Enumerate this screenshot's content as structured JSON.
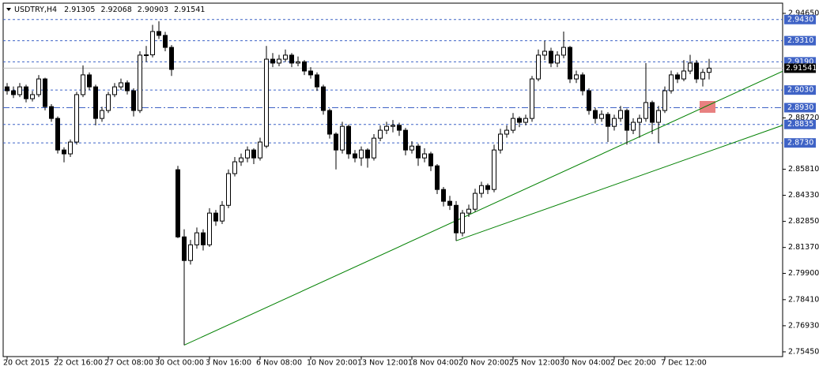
{
  "chart_data": {
    "type": "candlestick",
    "title": "USDTRY,H4",
    "header_values": [
      2.91305,
      2.92068,
      2.90903,
      2.91541
    ],
    "categories": [
      "20 Oct 2015",
      null,
      null,
      null,
      null,
      null,
      null,
      null,
      "22 Oct 16:00",
      null,
      null,
      null,
      null,
      null,
      null,
      null,
      "27 Oct 08:00",
      null,
      null,
      null,
      null,
      null,
      null,
      null,
      "30 Oct 00:00",
      null,
      null,
      null,
      null,
      null,
      null,
      null,
      "3 Nov 16:00",
      null,
      null,
      null,
      null,
      null,
      null,
      null,
      "6 Nov 08:00",
      null,
      null,
      null,
      null,
      null,
      null,
      null,
      "10 Nov 20:00",
      null,
      null,
      null,
      null,
      null,
      null,
      null,
      "13 Nov 12:00",
      null,
      null,
      null,
      null,
      null,
      null,
      null,
      "18 Nov 04:00",
      null,
      null,
      null,
      null,
      null,
      null,
      null,
      "20 Nov 20:00",
      null,
      null,
      null,
      null,
      null,
      null,
      null,
      "25 Nov 12:00",
      null,
      null,
      null,
      null,
      null,
      null,
      null,
      "30 Nov 04:00",
      null,
      null,
      null,
      null,
      null,
      null,
      null,
      "2 Dec 20:00",
      null,
      null,
      null,
      null,
      null,
      null,
      null,
      "7 Dec 12:00",
      null,
      null,
      null,
      null,
      null,
      null,
      null
    ],
    "ohlc": [
      [
        2.9048,
        2.907,
        2.9004,
        2.9026
      ],
      [
        2.9026,
        2.905,
        2.8985,
        2.9004
      ],
      [
        2.9004,
        2.907,
        2.899,
        2.9048
      ],
      [
        2.9048,
        2.906,
        2.896,
        2.8981
      ],
      [
        2.8981,
        2.9025,
        2.8965,
        2.9004
      ],
      [
        2.9004,
        2.9115,
        2.899,
        2.9093
      ],
      [
        2.9093,
        2.91,
        2.8915,
        2.8936
      ],
      [
        2.8936,
        2.895,
        2.885,
        2.8869
      ],
      [
        2.8869,
        2.888,
        2.867,
        2.869
      ],
      [
        2.869,
        2.8705,
        2.862,
        2.8668
      ],
      [
        2.8668,
        2.875,
        2.865,
        2.8735
      ],
      [
        2.8735,
        2.902,
        2.872,
        2.9004
      ],
      [
        2.9004,
        2.917,
        2.899,
        2.9116
      ],
      [
        2.9116,
        2.913,
        2.903,
        2.9048
      ],
      [
        2.9048,
        2.906,
        2.883,
        2.8869
      ],
      [
        2.8869,
        2.8935,
        2.885,
        2.8914
      ],
      [
        2.8914,
        2.902,
        2.89,
        2.9004
      ],
      [
        2.9004,
        2.907,
        2.899,
        2.9048
      ],
      [
        2.9048,
        2.9095,
        2.903,
        2.9071
      ],
      [
        2.9071,
        2.9085,
        2.9005,
        2.9026
      ],
      [
        2.9026,
        2.904,
        2.888,
        2.8914
      ],
      [
        2.8914,
        2.925,
        2.89,
        2.9228
      ],
      [
        2.9228,
        2.928,
        2.919,
        2.923
      ],
      [
        2.923,
        2.94,
        2.9215,
        2.9362
      ],
      [
        2.9362,
        2.942,
        2.932,
        2.934
      ],
      [
        2.934,
        2.936,
        2.925,
        2.9272
      ],
      [
        2.9272,
        2.9285,
        2.911,
        2.9147
      ],
      [
        2.8578,
        2.86,
        2.819,
        2.8197
      ],
      [
        2.8197,
        2.824,
        2.7583,
        2.8063
      ],
      [
        2.8063,
        2.818,
        2.804,
        2.8152
      ],
      [
        2.8152,
        2.825,
        2.813,
        2.822
      ],
      [
        2.822,
        2.824,
        2.812,
        2.8152
      ],
      [
        2.8152,
        2.836,
        2.814,
        2.8332
      ],
      [
        2.8332,
        2.835,
        2.826,
        2.8287
      ],
      [
        2.8287,
        2.84,
        2.827,
        2.8376
      ],
      [
        2.8376,
        2.858,
        2.836,
        2.8556
      ],
      [
        2.8556,
        2.865,
        2.854,
        2.8623
      ],
      [
        2.8623,
        2.867,
        2.86,
        2.8645
      ],
      [
        2.8645,
        2.871,
        2.862,
        2.869
      ],
      [
        2.869,
        2.87,
        2.861,
        2.8645
      ],
      [
        2.8645,
        2.876,
        2.863,
        2.8735
      ],
      [
        2.8712,
        2.928,
        2.87,
        2.9205
      ],
      [
        2.9205,
        2.924,
        2.916,
        2.9183
      ],
      [
        2.9183,
        2.923,
        2.9165,
        2.9205
      ],
      [
        2.9205,
        2.926,
        2.919,
        2.9228
      ],
      [
        2.9228,
        2.924,
        2.916,
        2.9183
      ],
      [
        2.9183,
        2.922,
        2.9165,
        2.919
      ],
      [
        2.919,
        2.92,
        2.9115,
        2.9138
      ],
      [
        2.9138,
        2.916,
        2.9095,
        2.9116
      ],
      [
        2.9116,
        2.913,
        2.9025,
        2.9048
      ],
      [
        2.9048,
        2.906,
        2.889,
        2.8914
      ],
      [
        2.8914,
        2.8925,
        2.8755,
        2.878
      ],
      [
        2.878,
        2.879,
        2.858,
        2.869
      ],
      [
        2.869,
        2.885,
        2.867,
        2.8824
      ],
      [
        2.8824,
        2.8835,
        2.864,
        2.8668
      ],
      [
        2.8668,
        2.869,
        2.862,
        2.8645
      ],
      [
        2.8645,
        2.871,
        2.86,
        2.869
      ],
      [
        2.869,
        2.87,
        2.859,
        2.8645
      ],
      [
        2.8645,
        2.878,
        2.863,
        2.8757
      ],
      [
        2.8757,
        2.883,
        2.874,
        2.8802
      ],
      [
        2.8802,
        2.885,
        2.878,
        2.8824
      ],
      [
        2.8824,
        2.886,
        2.879,
        2.883
      ],
      [
        2.883,
        2.8845,
        2.877,
        2.8802
      ],
      [
        2.8802,
        2.8815,
        2.866,
        2.869
      ],
      [
        2.869,
        2.874,
        2.867,
        2.8712
      ],
      [
        2.8712,
        2.8725,
        2.86,
        2.8645
      ],
      [
        2.8645,
        2.87,
        2.862,
        2.8668
      ],
      [
        2.8668,
        2.868,
        2.857,
        2.86
      ],
      [
        2.86,
        2.861,
        2.844,
        2.8466
      ],
      [
        2.8466,
        2.848,
        2.837,
        2.8399
      ],
      [
        2.8399,
        2.843,
        2.835,
        2.8376
      ],
      [
        2.8376,
        2.84,
        2.8175,
        2.822
      ],
      [
        2.822,
        2.835,
        2.82,
        2.8332
      ],
      [
        2.8332,
        2.838,
        2.831,
        2.8354
      ],
      [
        2.8354,
        2.847,
        2.834,
        2.8444
      ],
      [
        2.8444,
        2.851,
        2.842,
        2.8488
      ],
      [
        2.8488,
        2.85,
        2.844,
        2.8466
      ],
      [
        2.8466,
        2.872,
        2.845,
        2.869
      ],
      [
        2.869,
        2.881,
        2.867,
        2.878
      ],
      [
        2.878,
        2.883,
        2.876,
        2.8802
      ],
      [
        2.8802,
        2.89,
        2.8785,
        2.8869
      ],
      [
        2.8869,
        2.888,
        2.882,
        2.8847
      ],
      [
        2.8847,
        2.889,
        2.883,
        2.8869
      ],
      [
        2.8869,
        2.911,
        2.885,
        2.9093
      ],
      [
        2.9093,
        2.926,
        2.908,
        2.9228
      ],
      [
        2.9228,
        2.931,
        2.92,
        2.925
      ],
      [
        2.925,
        2.927,
        2.916,
        2.9183
      ],
      [
        2.9183,
        2.925,
        2.916,
        2.9228
      ],
      [
        2.9228,
        2.9362,
        2.921,
        2.9272
      ],
      [
        2.9272,
        2.928,
        2.907,
        2.9093
      ],
      [
        2.9093,
        2.914,
        2.907,
        2.9116
      ],
      [
        2.9116,
        2.913,
        2.9,
        2.9026
      ],
      [
        2.9026,
        2.904,
        2.889,
        2.8914
      ],
      [
        2.8914,
        2.893,
        2.884,
        2.8869
      ],
      [
        2.8869,
        2.8915,
        2.885,
        2.8892
      ],
      [
        2.8892,
        2.8905,
        2.8735,
        2.8824
      ],
      [
        2.8824,
        2.889,
        2.88,
        2.8869
      ],
      [
        2.8869,
        2.894,
        2.885,
        2.8914
      ],
      [
        2.8914,
        2.8925,
        2.872,
        2.8802
      ],
      [
        2.8802,
        2.887,
        2.878,
        2.8847
      ],
      [
        2.8847,
        2.889,
        2.876,
        2.8869
      ],
      [
        2.8869,
        2.9183,
        2.885,
        2.8959
      ],
      [
        2.8959,
        2.897,
        2.878,
        2.8847
      ],
      [
        2.8847,
        2.894,
        2.873,
        2.8914
      ],
      [
        2.8914,
        2.905,
        2.89,
        2.9026
      ],
      [
        2.9026,
        2.914,
        2.901,
        2.9116
      ],
      [
        2.9116,
        2.913,
        2.907,
        2.9093
      ],
      [
        2.9093,
        2.92,
        2.908,
        2.9138
      ],
      [
        2.9138,
        2.923,
        2.912,
        2.9183
      ],
      [
        2.9183,
        2.92,
        2.907,
        2.9093
      ],
      [
        2.9093,
        2.915,
        2.905,
        2.913
      ],
      [
        2.91305,
        2.92068,
        2.90903,
        2.91541
      ]
    ],
    "ylim": [
      2.7518,
      2.9505
    ],
    "yticks": [
      {
        "value": 2.9465,
        "label": "2.94650"
      },
      {
        "value": 2.8872,
        "label": "2.88720"
      },
      {
        "value": 2.8581,
        "label": "2.85810"
      },
      {
        "value": 2.8433,
        "label": "2.84330"
      },
      {
        "value": 2.8285,
        "label": "2.82850"
      },
      {
        "value": 2.8137,
        "label": "2.81370"
      },
      {
        "value": 2.799,
        "label": "2.79900"
      },
      {
        "value": 2.7841,
        "label": "2.78410"
      },
      {
        "value": 2.7693,
        "label": "2.76930"
      },
      {
        "value": 2.7545,
        "label": "2.75450"
      }
    ],
    "levels": [
      {
        "value": 2.943,
        "label": "2.9430",
        "style": "dash"
      },
      {
        "value": 2.931,
        "label": "2.9310",
        "style": "dash"
      },
      {
        "value": 2.919,
        "label": "2.9190",
        "style": "dash"
      },
      {
        "value": 2.903,
        "label": "2.9030",
        "style": "dash"
      },
      {
        "value": 2.893,
        "label": "2.8930",
        "style": "dashdot"
      },
      {
        "value": 2.8835,
        "label": "2.8835",
        "style": "dash"
      },
      {
        "value": 2.873,
        "label": "2.8730",
        "style": "dash"
      }
    ],
    "level_color": "#3f63c6",
    "current_price": 2.91541,
    "trendlines": [
      {
        "x": [
          28,
          123.25
        ],
        "y": [
          2.7583,
          2.9147
        ],
        "color": "#008000"
      },
      {
        "x": [
          71,
          123.25
        ],
        "y": [
          2.8175,
          2.8838
        ],
        "color": "#008000"
      }
    ],
    "zone": {
      "x": [
        109.5,
        112
      ],
      "y": [
        2.8901,
        2.8968
      ],
      "color": "#e88080"
    },
    "up_color": "#ffffff",
    "down_color": "#000000",
    "line_color": "#000000"
  }
}
